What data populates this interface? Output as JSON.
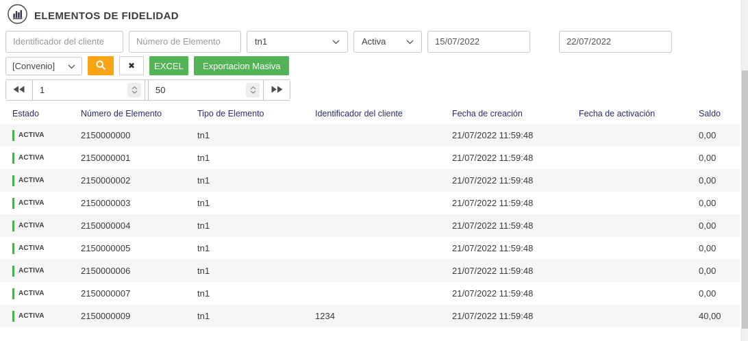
{
  "header": {
    "title": "ELEMENTOS DE FIDELIDAD"
  },
  "filters": {
    "client_id_placeholder": "Identificador del cliente",
    "element_number_placeholder": "Número de Elemento",
    "element_type_selected": "tn1",
    "status_selected": "Activa",
    "date_from_value": "15/07/2022",
    "date_to_value": "22/07/2022",
    "convenio_selected": "[Convenio]",
    "clear_glyph": "✖",
    "excel_label": "EXCEL",
    "export_label": "Exportacion Masiva"
  },
  "pagination": {
    "page_value": "1",
    "page_size_value": "50"
  },
  "table": {
    "columns": [
      "Estado",
      "Número de Elemento",
      "Tipo de Elemento",
      "Identificador del cliente",
      "Fecha de creación",
      "Fecha de activación",
      "Saldo"
    ],
    "rows": [
      {
        "estado": "ACTIVA",
        "numero": "2150000000",
        "tipo": "tn1",
        "cliente": "",
        "creacion": "21/07/2022 11:59:48",
        "activacion": "",
        "saldo": "0,00"
      },
      {
        "estado": "ACTIVA",
        "numero": "2150000001",
        "tipo": "tn1",
        "cliente": "",
        "creacion": "21/07/2022 11:59:48",
        "activacion": "",
        "saldo": "0,00"
      },
      {
        "estado": "ACTIVA",
        "numero": "2150000002",
        "tipo": "tn1",
        "cliente": "",
        "creacion": "21/07/2022 11:59:48",
        "activacion": "",
        "saldo": "0,00"
      },
      {
        "estado": "ACTIVA",
        "numero": "2150000003",
        "tipo": "tn1",
        "cliente": "",
        "creacion": "21/07/2022 11:59:48",
        "activacion": "",
        "saldo": "0,00"
      },
      {
        "estado": "ACTIVA",
        "numero": "2150000004",
        "tipo": "tn1",
        "cliente": "",
        "creacion": "21/07/2022 11:59:48",
        "activacion": "",
        "saldo": "0,00"
      },
      {
        "estado": "ACTIVA",
        "numero": "2150000005",
        "tipo": "tn1",
        "cliente": "",
        "creacion": "21/07/2022 11:59:48",
        "activacion": "",
        "saldo": "0,00"
      },
      {
        "estado": "ACTIVA",
        "numero": "2150000006",
        "tipo": "tn1",
        "cliente": "",
        "creacion": "21/07/2022 11:59:48",
        "activacion": "",
        "saldo": "0,00"
      },
      {
        "estado": "ACTIVA",
        "numero": "2150000007",
        "tipo": "tn1",
        "cliente": "",
        "creacion": "21/07/2022 11:59:48",
        "activacion": "",
        "saldo": "0,00"
      },
      {
        "estado": "ACTIVA",
        "numero": "2150000009",
        "tipo": "tn1",
        "cliente": "1234",
        "creacion": "21/07/2022 11:59:48",
        "activacion": "",
        "saldo": "40,00"
      }
    ]
  },
  "icons": {
    "app": "bar-chart-icon",
    "search": "search-icon",
    "clear": "x-icon",
    "select": "chevron-down-icon",
    "prev": "double-chevron-left-icon",
    "next": "double-chevron-right-icon",
    "spinner": "up-down-spinner-icon"
  },
  "colors": {
    "button_green": "#54b257",
    "button_orange": "#f8a415",
    "status_bar_green": "#4cae50",
    "table_header_text": "#2b2b6e",
    "row_stripe": "#f6f6f6"
  }
}
